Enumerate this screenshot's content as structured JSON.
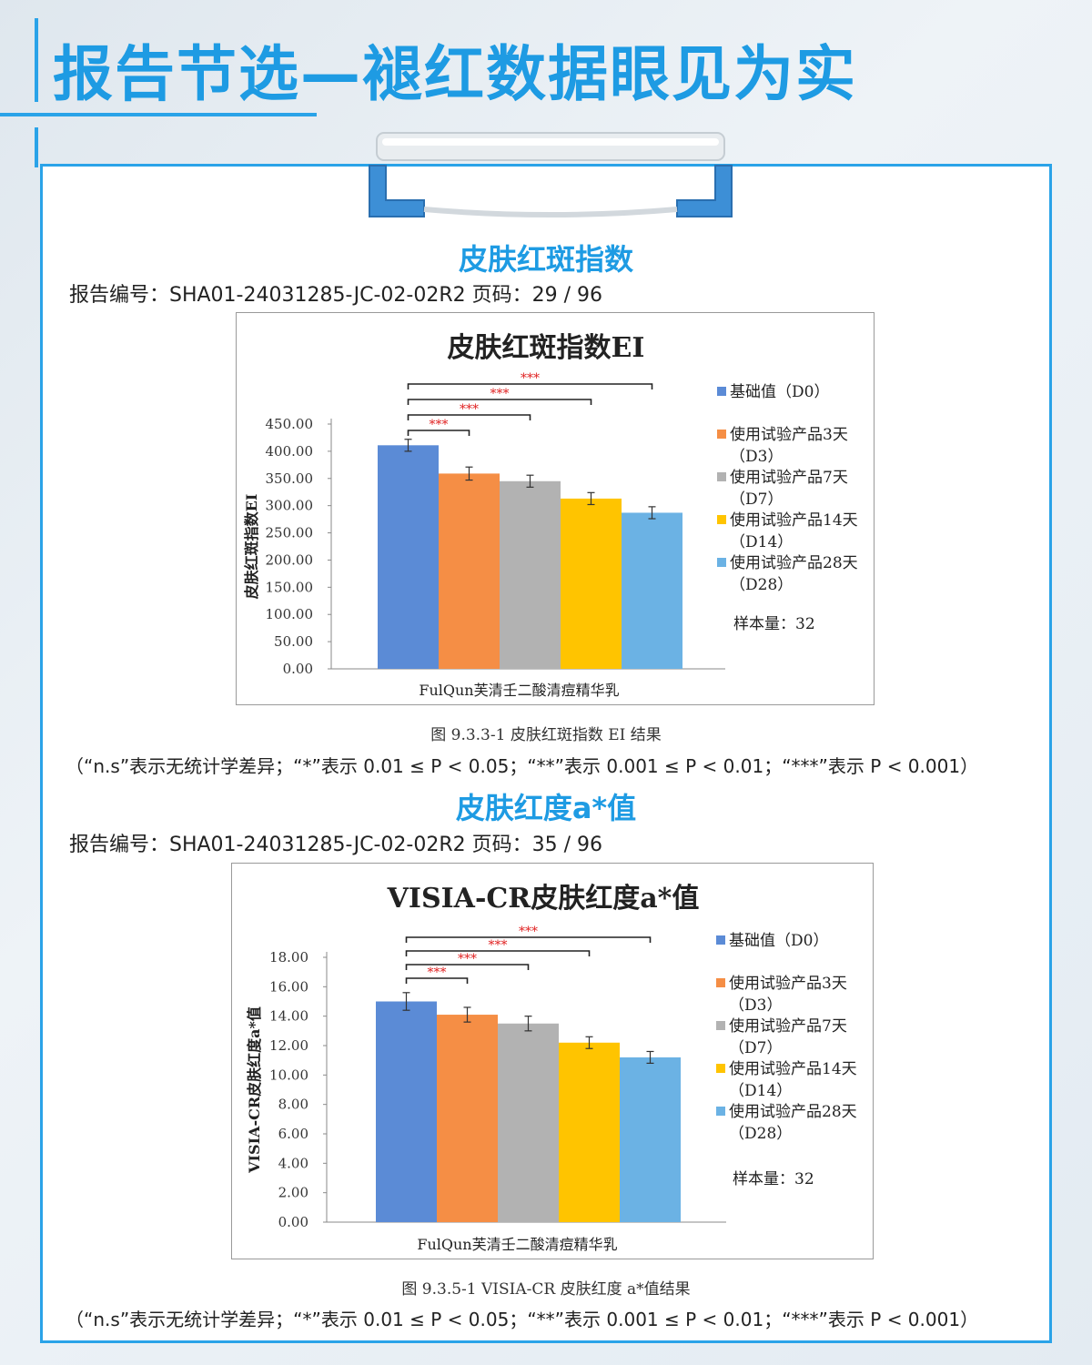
{
  "page": {
    "title": "报告节选—褪红数据眼见为实"
  },
  "colors": {
    "accent": "#1e9be3",
    "card_border": "#2aa3e8",
    "sig": "#e02020"
  },
  "section1": {
    "heading": "皮肤红斑指数",
    "report_no": "报告编号：SHA01-24031285-JC-02-02R2 页码：29 / 96",
    "caption": "图 9.3.3-1  皮肤红斑指数 EI 结果",
    "note": "（“n.s”表示无统计学差异；“*”表示 0.01 ≤ P < 0.05；“**”表示 0.001 ≤ P < 0.01；“***”表示 P < 0.001）"
  },
  "section2": {
    "heading": "皮肤红度a*值",
    "report_no": "报告编号：SHA01-24031285-JC-02-02R2 页码：35 / 96",
    "caption": "图 9.3.5-1 VISIA-CR 皮肤红度 a*值结果",
    "note": "（“n.s”表示无统计学差异；“*”表示 0.01 ≤ P < 0.05；“**”表示 0.001 ≤ P < 0.01；“***”表示 P < 0.001）"
  },
  "chart_data": [
    {
      "type": "bar",
      "title": "皮肤红斑指数EI",
      "ylabel": "皮肤红斑指数EI",
      "xlabel": "FulQun芙清壬二酸清痘精华乳",
      "ylim": [
        0,
        450
      ],
      "yticks": [
        "0.00",
        "50.00",
        "100.00",
        "150.00",
        "200.00",
        "250.00",
        "300.00",
        "350.00",
        "400.00",
        "450.00"
      ],
      "ytick_values": [
        0,
        50,
        100,
        150,
        200,
        250,
        300,
        350,
        400,
        450
      ],
      "series": [
        {
          "name": "基础值（D0）",
          "legend": [
            "基础值（D0）"
          ],
          "value": 411,
          "error": 11,
          "color": "#5b8bd6"
        },
        {
          "name": "使用试验产品3天（D3）",
          "legend": [
            "使用试验产品3天",
            "（D3）"
          ],
          "value": 359,
          "error": 12,
          "color": "#f58e45"
        },
        {
          "name": "使用试验产品7天（D7）",
          "legend": [
            "使用试验产品7天",
            "（D7）"
          ],
          "value": 345,
          "error": 11,
          "color": "#b2b2b2"
        },
        {
          "name": "使用试验产品14天（D14）",
          "legend": [
            "使用试验产品14天",
            "（D14）"
          ],
          "value": 313,
          "error": 11,
          "color": "#ffc400"
        },
        {
          "name": "使用试验产品28天（D28）",
          "legend": [
            "使用试验产品28天",
            "（D28）"
          ],
          "value": 287,
          "error": 11,
          "color": "#6bb2e4"
        }
      ],
      "significance": [
        {
          "compare": [
            "基础值（D0）",
            "使用试验产品3天（D3）"
          ],
          "label": "***"
        },
        {
          "compare": [
            "基础值（D0）",
            "使用试验产品7天（D7）"
          ],
          "label": "***"
        },
        {
          "compare": [
            "基础值（D0）",
            "使用试验产品14天（D14）"
          ],
          "label": "***"
        },
        {
          "compare": [
            "基础值（D0）",
            "使用试验产品28天（D28）"
          ],
          "label": "***"
        }
      ],
      "sample_note": "样本量：32",
      "grid": false,
      "legend_position": "right"
    },
    {
      "type": "bar",
      "title": "VISIA-CR皮肤红度a*值",
      "ylabel": "VISIA-CR皮肤红度a*值",
      "xlabel": "FulQun芙清壬二酸清痘精华乳",
      "ylim": [
        0,
        18
      ],
      "yticks": [
        "0.00",
        "2.00",
        "4.00",
        "6.00",
        "8.00",
        "10.00",
        "12.00",
        "14.00",
        "16.00",
        "18.00"
      ],
      "ytick_values": [
        0,
        2,
        4,
        6,
        8,
        10,
        12,
        14,
        16,
        18
      ],
      "series": [
        {
          "name": "基础值（D0）",
          "legend": [
            "基础值（D0）"
          ],
          "value": 15.0,
          "error": 0.6,
          "color": "#5b8bd6"
        },
        {
          "name": "使用试验产品3天（D3）",
          "legend": [
            "使用试验产品3天",
            "（D3）"
          ],
          "value": 14.1,
          "error": 0.5,
          "color": "#f58e45"
        },
        {
          "name": "使用试验产品7天（D7）",
          "legend": [
            "使用试验产品7天",
            "（D7）"
          ],
          "value": 13.5,
          "error": 0.5,
          "color": "#b2b2b2"
        },
        {
          "name": "使用试验产品14天（D14）",
          "legend": [
            "使用试验产品14天",
            "（D14）"
          ],
          "value": 12.2,
          "error": 0.4,
          "color": "#ffc400"
        },
        {
          "name": "使用试验产品28天（D28）",
          "legend": [
            "使用试验产品28天",
            "（D28）"
          ],
          "value": 11.2,
          "error": 0.4,
          "color": "#6bb2e4"
        }
      ],
      "significance": [
        {
          "compare": [
            "基础值（D0）",
            "使用试验产品3天（D3）"
          ],
          "label": "***"
        },
        {
          "compare": [
            "基础值（D0）",
            "使用试验产品7天（D7）"
          ],
          "label": "***"
        },
        {
          "compare": [
            "基础值（D0）",
            "使用试验产品14天（D14）"
          ],
          "label": "***"
        },
        {
          "compare": [
            "基础值（D0）",
            "使用试验产品28天（D28）"
          ],
          "label": "***"
        }
      ],
      "sample_note": "样本量：32",
      "grid": false,
      "legend_position": "right"
    }
  ]
}
